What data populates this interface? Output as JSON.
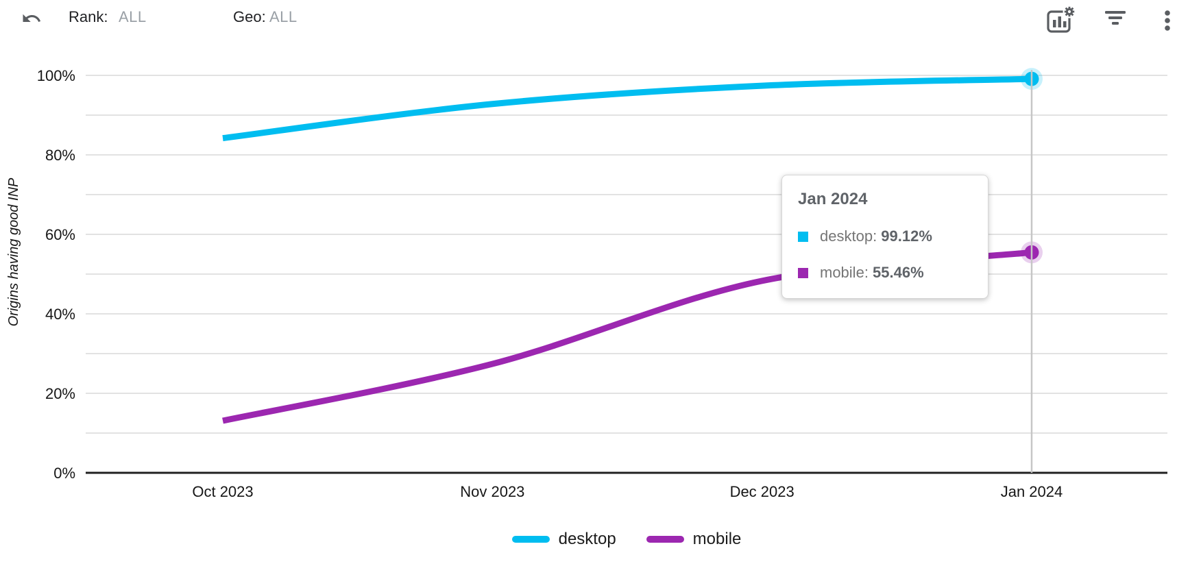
{
  "toolbar": {
    "filters": [
      {
        "label": "Rank:",
        "value": "ALL"
      },
      {
        "label": "Geo:",
        "value": "ALL"
      }
    ],
    "action_icons": [
      "undo-icon",
      "chart-settings-icon",
      "filter-icon",
      "more-vertical-icon"
    ]
  },
  "colors": {
    "desktop": "#00BDF0",
    "mobile": "#9C27B0",
    "grid": "#e2e2e2",
    "axis": "#202020",
    "crosshair": "#c6c6c6",
    "icon_gray": "#5a5d61",
    "tick_text": "#161616",
    "filter_value_gray": "#9aa0a6",
    "tooltip_title": "#5f6368",
    "tooltip_text": "#757575"
  },
  "chart_data": {
    "type": "line",
    "categories": [
      "Oct 2023",
      "Nov 2023",
      "Dec 2023",
      "Jan 2024"
    ],
    "series": [
      {
        "name": "desktop",
        "color": "#00BDF0",
        "values": [
          84.2,
          92.8,
          97.4,
          99.12
        ]
      },
      {
        "name": "mobile",
        "color": "#9C27B0",
        "values": [
          13.1,
          27.4,
          48.3,
          55.46
        ]
      }
    ],
    "title": "",
    "xlabel": "",
    "ylabel": "Origins having good INP",
    "ylim": [
      0,
      100
    ],
    "grid_step": 10,
    "ytick_step_labeled": 20,
    "ytick_labels": [
      "0%",
      "20%",
      "40%",
      "60%",
      "80%",
      "100%"
    ],
    "grid": true,
    "legend_position": "bottom-center",
    "crosshair_x": "Jan 2024",
    "tooltip": {
      "title": "Jan 2024",
      "rows": [
        {
          "series": "desktop",
          "value": "99.12%"
        },
        {
          "series": "mobile",
          "value": "55.46%"
        }
      ]
    }
  }
}
